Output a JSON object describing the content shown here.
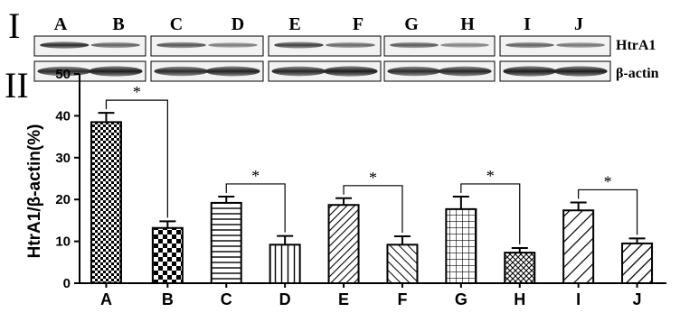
{
  "panel_labels": {
    "blot": "I",
    "chart": "II"
  },
  "blot": {
    "lane_labels": [
      "A",
      "B",
      "C",
      "D",
      "E",
      "F",
      "G",
      "H",
      "I",
      "J"
    ],
    "row_labels": [
      "HtrA1",
      "β-actin"
    ]
  },
  "chart_data": {
    "type": "bar",
    "title": "",
    "xlabel": "",
    "ylabel": "HtrA1/β-actin(%)",
    "categories": [
      "A",
      "B",
      "C",
      "D",
      "E",
      "F",
      "G",
      "H",
      "I",
      "J"
    ],
    "values": [
      38.5,
      13.2,
      19.2,
      9.2,
      18.7,
      9.2,
      17.7,
      7.3,
      17.4,
      9.5
    ],
    "errors": [
      2.2,
      1.6,
      1.5,
      2.1,
      1.6,
      2.0,
      3.0,
      1.1,
      1.9,
      1.2
    ],
    "patterns": [
      "fine-check",
      "check",
      "horizontal",
      "vertical",
      "diag-dense",
      "diag-back",
      "grid",
      "diag-cross",
      "diag-wide",
      "diag-wide2"
    ],
    "ylim": [
      0,
      50
    ],
    "yticks": [
      0,
      10,
      20,
      30,
      40,
      50
    ],
    "significance": [
      {
        "from": "A",
        "to": "B",
        "label": "*"
      },
      {
        "from": "C",
        "to": "D",
        "label": "*"
      },
      {
        "from": "E",
        "to": "F",
        "label": "*"
      },
      {
        "from": "G",
        "to": "H",
        "label": "*"
      },
      {
        "from": "I",
        "to": "J",
        "label": "*"
      }
    ],
    "grid": false,
    "colors": {
      "fill": "#ffffff",
      "stroke": "#000000"
    }
  }
}
